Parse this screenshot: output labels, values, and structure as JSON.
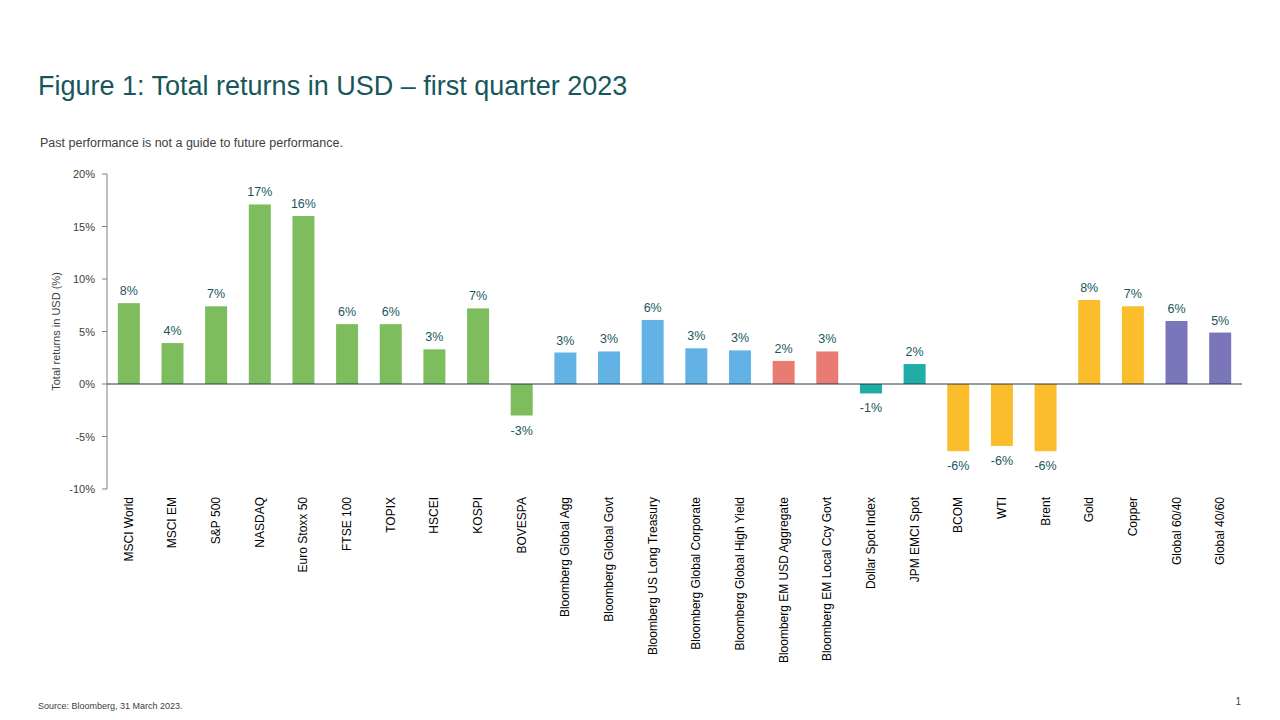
{
  "chart_data": {
    "type": "bar",
    "title": "Figure 1: Total returns in USD – first quarter 2023",
    "subtitle": "Past performance is not a guide to future performance.",
    "y_label": "Total returns in USD (%)",
    "source": "Source: Bloomberg, 31 March 2023.",
    "page_number": "1",
    "categories": [
      "MSCI World",
      "MSCI EM",
      "S&P 500",
      "NASDAQ",
      "Euro Stoxx 50",
      "FTSE 100",
      "TOPIX",
      "HSCEI",
      "KOSPI",
      "BOVESPA",
      "Bloomberg Global Agg",
      "Bloomberg Global Govt",
      "Bloomberg US Long Treasury",
      "Bloomberg Global Corporate",
      "Bloomberg Global High Yield",
      "Bloomberg EM USD Aggregate",
      "Bloomberg EM Local Ccy Govt",
      "Dollar Spot Index",
      "JPM EMCI Spot",
      "BCOM",
      "WTI",
      "Brent",
      "Gold",
      "Copper",
      "Global 60/40",
      "Global 40/60"
    ],
    "values": [
      7.7,
      3.9,
      7.4,
      17.1,
      16.0,
      5.7,
      5.7,
      3.3,
      7.2,
      -3.0,
      3.0,
      3.1,
      6.1,
      3.4,
      3.2,
      2.2,
      3.1,
      -0.9,
      1.9,
      -6.4,
      -5.9,
      -6.4,
      8.0,
      7.4,
      6.0,
      4.9
    ],
    "value_labels": [
      "8%",
      "4%",
      "7%",
      "17%",
      "16%",
      "6%",
      "6%",
      "3%",
      "7%",
      "-3%",
      "3%",
      "3%",
      "6%",
      "3%",
      "3%",
      "2%",
      "3%",
      "-1%",
      "2%",
      "-6%",
      "-6%",
      "-6%",
      "8%",
      "7%",
      "6%",
      "5%"
    ],
    "colors": [
      "#7dbd5d",
      "#7dbd5d",
      "#7dbd5d",
      "#7dbd5d",
      "#7dbd5d",
      "#7dbd5d",
      "#7dbd5d",
      "#7dbd5d",
      "#7dbd5d",
      "#7dbd5d",
      "#62b2e6",
      "#62b2e6",
      "#62b2e6",
      "#62b2e6",
      "#62b2e6",
      "#e97b72",
      "#e97b72",
      "#1fada5",
      "#1fada5",
      "#fbbd2c",
      "#fbbd2c",
      "#fbbd2c",
      "#fbbd2c",
      "#fbbd2c",
      "#7a76b9",
      "#7a76b9"
    ],
    "ylim": [
      -10,
      20
    ],
    "yticks": [
      {
        "value": -10,
        "label": "-10%"
      },
      {
        "value": -5,
        "label": "-5%"
      },
      {
        "value": 0,
        "label": "0%"
      },
      {
        "value": 5,
        "label": "5%"
      },
      {
        "value": 10,
        "label": "10%"
      },
      {
        "value": 15,
        "label": "15%"
      },
      {
        "value": 20,
        "label": "20%"
      }
    ],
    "grid": false,
    "data_labels": true
  }
}
